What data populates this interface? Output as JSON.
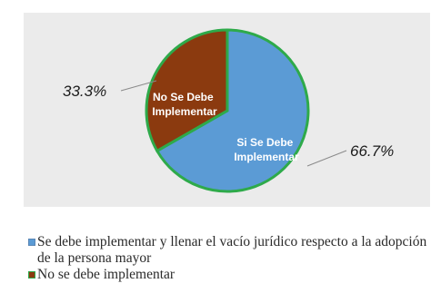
{
  "chart_data": {
    "type": "pie",
    "slices": [
      {
        "label": "Si Se Debe Implementar",
        "value": 66.7,
        "value_label": "66.7%",
        "color": "#5b9bd5",
        "legend": "Se debe implementar y llenar el vacío jurídico respecto a la adopción de la persona mayor"
      },
      {
        "label": "No Se Debe Implementar",
        "value": 33.3,
        "value_label": "33.3%",
        "color": "#8b3a0f",
        "legend": "No se debe implementar"
      }
    ],
    "slice_border_color": "#2eaa4a",
    "legend_placement": "bottom"
  }
}
